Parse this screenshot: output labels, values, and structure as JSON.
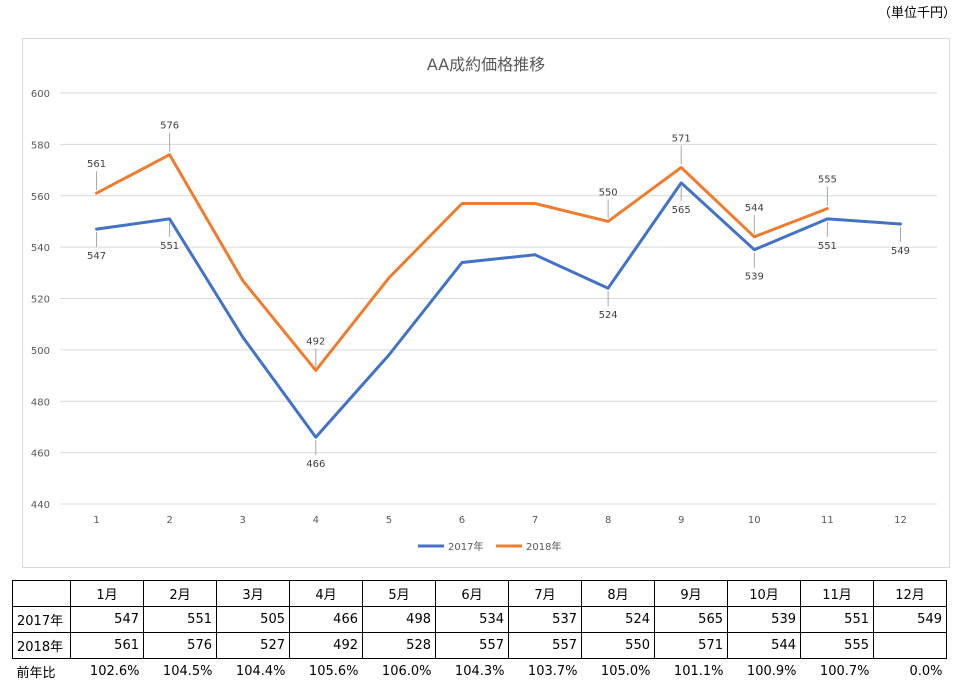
{
  "unit_note": "（単位千円）",
  "chart_data": {
    "type": "line",
    "title": "AA成約価格推移",
    "xlabel": "",
    "ylabel": "",
    "categories": [
      "1",
      "2",
      "3",
      "4",
      "5",
      "6",
      "7",
      "8",
      "9",
      "10",
      "11",
      "12"
    ],
    "ylim": [
      440,
      600
    ],
    "yticks": [
      440,
      460,
      480,
      500,
      520,
      540,
      560,
      580,
      600
    ],
    "grid": true,
    "legend": "bottom",
    "series": [
      {
        "name": "2017年",
        "color": "#4472c4",
        "values": [
          547,
          551,
          505,
          466,
          498,
          534,
          537,
          524,
          565,
          539,
          551,
          549
        ],
        "labeled": [
          0,
          1,
          3,
          7,
          8,
          9,
          10,
          11
        ]
      },
      {
        "name": "2018年",
        "color": "#ed7d31",
        "values": [
          561,
          576,
          527,
          492,
          528,
          557,
          557,
          550,
          571,
          544,
          555,
          null
        ],
        "labeled": [
          0,
          1,
          3,
          7,
          8,
          9,
          10
        ]
      }
    ]
  },
  "table": {
    "months": [
      "1月",
      "2月",
      "3月",
      "4月",
      "5月",
      "6月",
      "7月",
      "8月",
      "9月",
      "10月",
      "11月",
      "12月"
    ],
    "rows": [
      {
        "label": "2017年",
        "values": [
          "547",
          "551",
          "505",
          "466",
          "498",
          "534",
          "537",
          "524",
          "565",
          "539",
          "551",
          "549"
        ]
      },
      {
        "label": "2018年",
        "values": [
          "561",
          "576",
          "527",
          "492",
          "528",
          "557",
          "557",
          "550",
          "571",
          "544",
          "555",
          ""
        ]
      }
    ],
    "ratio": {
      "label": "前年比",
      "values": [
        "102.6%",
        "104.5%",
        "104.4%",
        "105.6%",
        "106.0%",
        "104.3%",
        "103.7%",
        "105.0%",
        "101.1%",
        "100.9%",
        "100.7%",
        "0.0%"
      ]
    }
  }
}
